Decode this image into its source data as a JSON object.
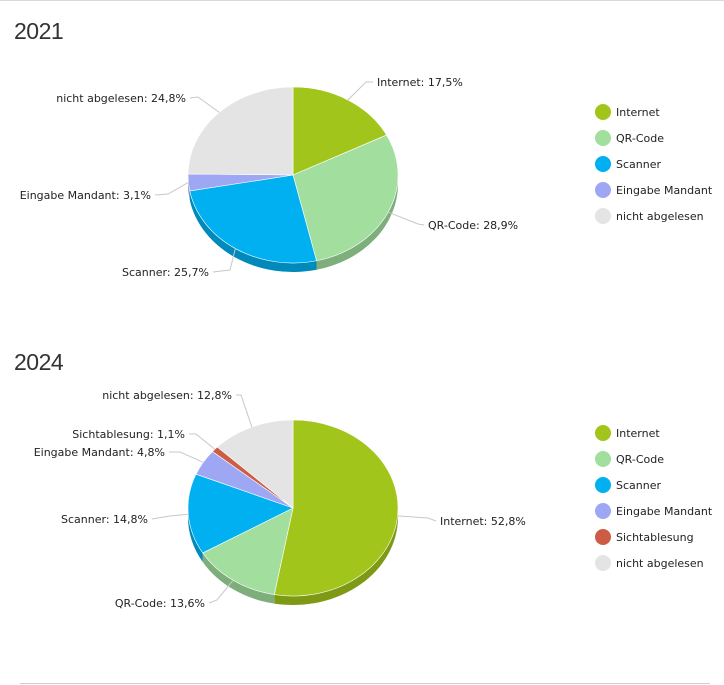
{
  "chart_data": [
    {
      "type": "pie",
      "title": "2021",
      "legend_position": "right",
      "slices": [
        {
          "name": "Internet",
          "value": 17.5,
          "label": "Internet: 17,5%",
          "color": "#a2c51b"
        },
        {
          "name": "QR-Code",
          "value": 28.9,
          "label": "QR-Code: 28,9%",
          "color": "#a2df9f"
        },
        {
          "name": "Scanner",
          "value": 25.7,
          "label": "Scanner: 25,7%",
          "color": "#00b0f0"
        },
        {
          "name": "Eingabe Mandant",
          "value": 3.1,
          "label": "Eingabe Mandant: 3,1%",
          "color": "#9ea7f3"
        },
        {
          "name": "nicht abgelesen",
          "value": 24.8,
          "label": "nicht abgelesen: 24,8%",
          "color": "#e4e4e4"
        }
      ]
    },
    {
      "type": "pie",
      "title": "2024",
      "legend_position": "right",
      "slices": [
        {
          "name": "Internet",
          "value": 52.8,
          "label": "Internet: 52,8%",
          "color": "#a2c51b"
        },
        {
          "name": "QR-Code",
          "value": 13.6,
          "label": "QR-Code: 13,6%",
          "color": "#a2df9f"
        },
        {
          "name": "Scanner",
          "value": 14.8,
          "label": "Scanner: 14,8%",
          "color": "#00b0f0"
        },
        {
          "name": "Eingabe Mandant",
          "value": 4.8,
          "label": "Eingabe Mandant: 4,8%",
          "color": "#9ea7f3"
        },
        {
          "name": "Sichtablesung",
          "value": 1.1,
          "label": "Sichtablesung: 1,1%",
          "color": "#cd5c45"
        },
        {
          "name": "nicht abgelesen",
          "value": 12.8,
          "label": "nicht abgelesen: 12,8%",
          "color": "#e4e4e4"
        }
      ]
    }
  ]
}
